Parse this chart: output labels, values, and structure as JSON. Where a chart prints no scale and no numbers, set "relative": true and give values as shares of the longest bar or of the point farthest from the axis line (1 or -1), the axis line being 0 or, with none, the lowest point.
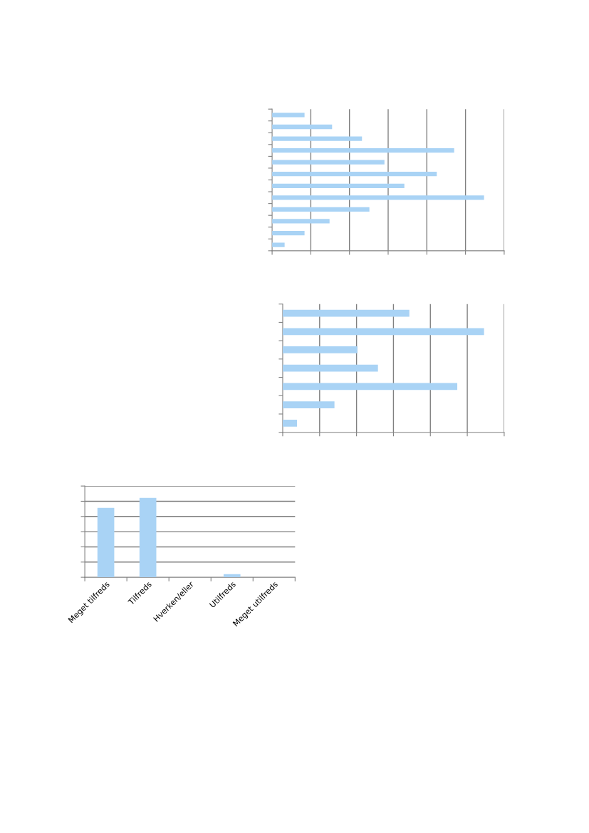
{
  "chart_data": [
    {
      "type": "bar",
      "orientation": "horizontal",
      "relative": true,
      "grid": "x",
      "color": "#a9d3f5",
      "categories": [
        null,
        null,
        null,
        null,
        null,
        null,
        null,
        null,
        null,
        null,
        null,
        null
      ],
      "values": [
        0.153,
        0.283,
        0.424,
        0.859,
        0.53,
        0.777,
        0.624,
        1,
        0.459,
        0.271,
        0.153,
        0.059
      ]
    },
    {
      "type": "bar",
      "orientation": "horizontal",
      "relative": true,
      "grid": "x",
      "color": "#a9d3f5",
      "categories": [
        null,
        null,
        null,
        null,
        null,
        null,
        null
      ],
      "values": [
        0.629,
        1,
        0.371,
        0.473,
        0.867,
        0.257,
        0.071
      ]
    },
    {
      "type": "bar",
      "relative": true,
      "grid": "y",
      "color": "#a9d3f5",
      "categories": [
        "Meget tilfreds",
        "Tilfreds",
        "Hverken/eller",
        "Utilfreds",
        "Meget utilfreds"
      ],
      "values": [
        0.874,
        1,
        0,
        0.039,
        0
      ]
    }
  ]
}
